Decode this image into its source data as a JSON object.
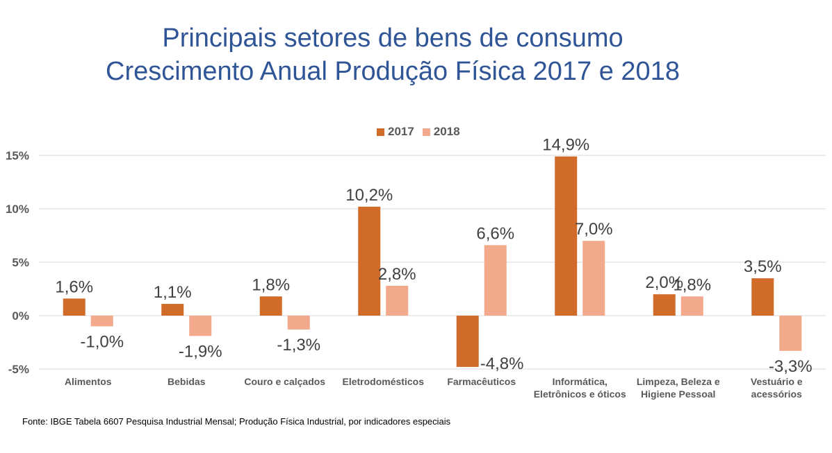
{
  "title_line1": "Principais setores de bens de consumo",
  "title_line2": "Crescimento Anual Produção Física 2017 e 2018",
  "source": "Fonte: IBGE Tabela 6607 Pesquisa Industrial Mensal; Produção Física Industrial, por indicadores especiais",
  "colors": {
    "title": "#2f5597",
    "series2017": "#d06b2a",
    "series2018": "#f2a98c"
  },
  "chart_data": {
    "type": "bar",
    "title": "Principais setores de bens de consumo Crescimento Anual Produção Física 2017 e 2018",
    "ylim": [
      -5,
      15
    ],
    "yticks": [
      15,
      10,
      5,
      0,
      -5
    ],
    "ytick_labels": [
      "15%",
      "10%",
      "5%",
      "0%",
      "-5%"
    ],
    "legend_position": "top-center",
    "grid": true,
    "categories": [
      [
        "Alimentos"
      ],
      [
        "Bebidas"
      ],
      [
        "Couro e calçados"
      ],
      [
        "Eletrodomésticos"
      ],
      [
        "Farmacêuticos"
      ],
      [
        "Informática,",
        "Eletrônicos e óticos"
      ],
      [
        "Limpeza, Beleza e",
        "Higiene Pessoal"
      ],
      [
        "Vestuário e",
        "acessórios"
      ]
    ],
    "series": [
      {
        "name": "2017",
        "values": [
          1.6,
          1.1,
          1.8,
          10.2,
          -4.8,
          14.9,
          2.0,
          3.5
        ],
        "labels": [
          "1,6%",
          "1,1%",
          "1,8%",
          "10,2%",
          "-4,8%",
          "14,9%",
          "2,0%",
          "3,5%"
        ]
      },
      {
        "name": "2018",
        "values": [
          -1.0,
          -1.9,
          -1.3,
          2.8,
          6.6,
          7.0,
          1.8,
          -3.3
        ],
        "labels": [
          "-1,0%",
          "-1,9%",
          "-1,3%",
          "2,8%",
          "6,6%",
          "7,0%",
          "1,8%",
          "-3,3%"
        ]
      }
    ]
  }
}
